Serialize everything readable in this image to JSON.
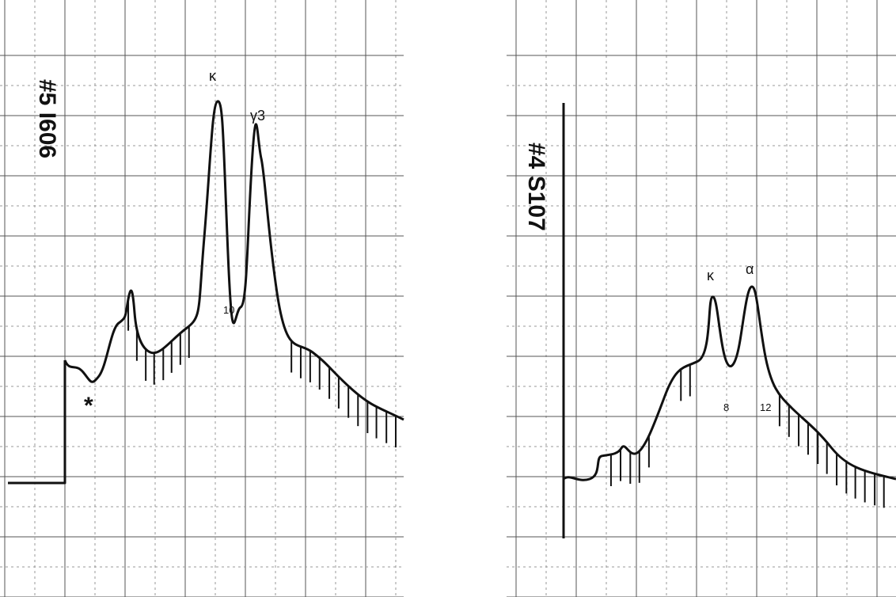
{
  "left_panel": {
    "label": "#5 I606",
    "peaks": {
      "kappa": "κ",
      "gamma": "γ3"
    },
    "marks": {
      "fraction": "10",
      "star": "*"
    }
  },
  "right_panel": {
    "label": "#4 S107",
    "peaks": {
      "kappa": "κ",
      "alpha": "α"
    },
    "marks": {
      "fraction_a": "8",
      "fraction_b": "12"
    }
  }
}
